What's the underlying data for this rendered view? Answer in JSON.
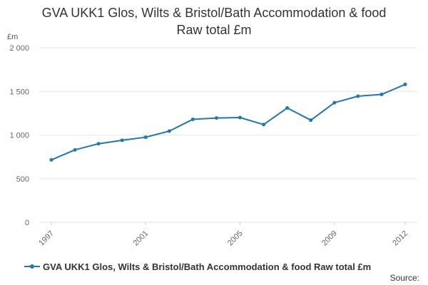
{
  "title_lines": [
    "GVA UKK1 Glos, Wilts & Bristol/Bath Accommodation & food",
    "Raw total £m"
  ],
  "unit_label": "£m",
  "source_label": "Source:",
  "colors": {
    "series": "#1f77b4",
    "grid": "#e6e6e6",
    "axis_text": "#666666"
  },
  "chart_data": {
    "type": "line",
    "title": "GVA UKK1 Glos, Wilts & Bristol/Bath Accommodation & food Raw total £m",
    "ylabel": "£m",
    "xlabel": "",
    "x": [
      1997,
      1998,
      1999,
      2000,
      2001,
      2002,
      2003,
      2004,
      2005,
      2006,
      2007,
      2008,
      2009,
      2010,
      2011,
      2012
    ],
    "series": [
      {
        "name": "GVA UKK1 Glos, Wilts & Bristol/Bath Accommodation & food Raw total £m",
        "values": [
          715,
          830,
          900,
          940,
          975,
          1045,
          1180,
          1195,
          1200,
          1120,
          1310,
          1170,
          1370,
          1445,
          1465,
          1580
        ]
      }
    ],
    "ylim": [
      0,
      2000
    ],
    "y_ticks": [
      0,
      500,
      1000,
      1500,
      2000
    ],
    "y_tick_labels": [
      "0",
      "500",
      "1 000",
      "1 500",
      "2 000"
    ],
    "x_tick_labels": [
      "1997",
      "2001",
      "2005",
      "2009",
      "2012"
    ],
    "grid": true,
    "legend_position": "bottom"
  }
}
